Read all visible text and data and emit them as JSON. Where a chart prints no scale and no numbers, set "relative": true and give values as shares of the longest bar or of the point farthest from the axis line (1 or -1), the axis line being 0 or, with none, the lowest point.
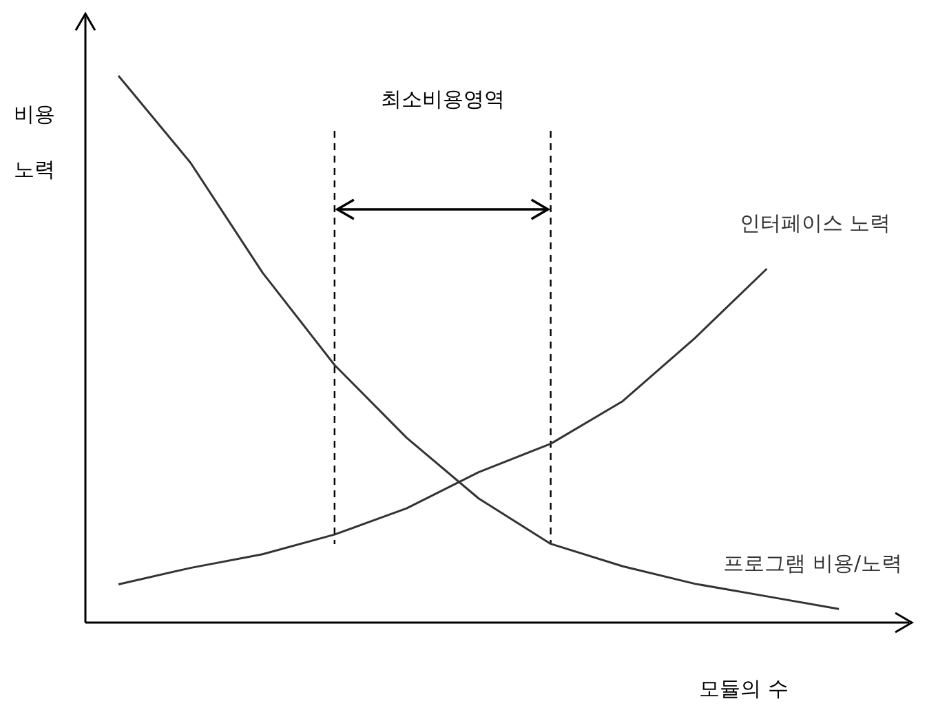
{
  "chart_data": {
    "type": "line",
    "relative": true,
    "xlabel": "모듈의 수",
    "ylabel": "비용\n노력",
    "marker": "none",
    "line_style": "solid",
    "categories": [
      null,
      null,
      null,
      null,
      null,
      null,
      null,
      null,
      null,
      null,
      null,
      null
    ],
    "series": [
      {
        "name": "프로그램 비용/노력",
        "color": "#333333",
        "values": [
          1,
          0.841,
          0.64,
          0.471,
          0.338,
          0.227,
          0.144,
          0.103,
          0.071,
          0.048,
          0.025,
          null
        ]
      },
      {
        "name": "인터페이스 노력",
        "color": "#333333",
        "values": [
          0.07,
          0.1,
          0.125,
          0.161,
          0.209,
          0.275,
          0.327,
          0.405,
          0.52,
          0.647,
          null,
          null
        ]
      }
    ],
    "annotations": [
      "최소비용영역"
    ]
  }
}
